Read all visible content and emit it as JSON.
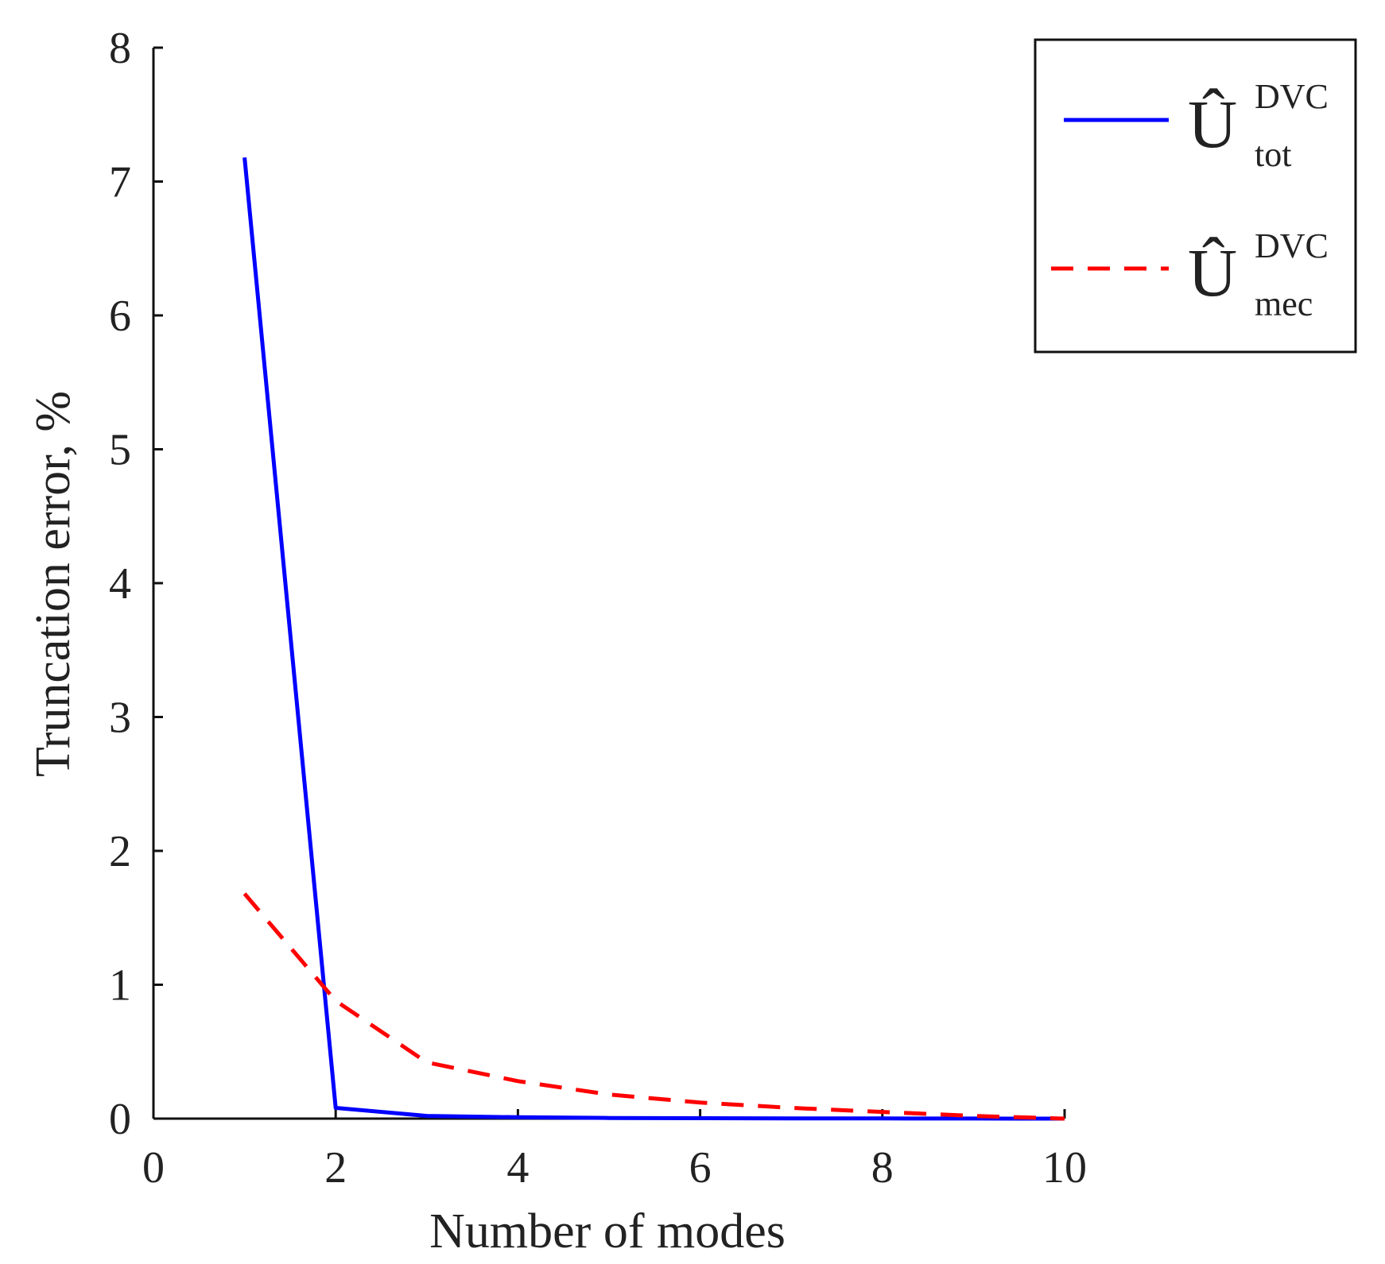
{
  "chart_data": {
    "type": "line",
    "title": "",
    "xlabel": "Number of modes",
    "ylabel": "Truncation error, %",
    "xlim": [
      0,
      10
    ],
    "ylim": [
      0,
      8
    ],
    "xticks": [
      "0",
      "2",
      "4",
      "6",
      "8",
      "10"
    ],
    "yticks": [
      "0",
      "1",
      "2",
      "3",
      "4",
      "5",
      "6",
      "7",
      "8"
    ],
    "grid": false,
    "legend_position": "top-right",
    "x": [
      1,
      2,
      3,
      4,
      5,
      6,
      7,
      8,
      9,
      10
    ],
    "series": [
      {
        "name": "Û tot DVC",
        "legend_base": "Û",
        "legend_sup": "DVC",
        "legend_sub": "tot",
        "style": "solid",
        "color": "#0000ff",
        "values": [
          7.18,
          0.08,
          0.02,
          0.01,
          0.005,
          0.003,
          0.002,
          0.001,
          0.0005,
          0.0
        ]
      },
      {
        "name": "Û mec DVC",
        "legend_base": "Û",
        "legend_sup": "DVC",
        "legend_sub": "mec",
        "style": "dashed",
        "color": "#ff0000",
        "values": [
          1.68,
          0.88,
          0.42,
          0.28,
          0.18,
          0.12,
          0.08,
          0.05,
          0.02,
          0.0
        ]
      }
    ]
  }
}
